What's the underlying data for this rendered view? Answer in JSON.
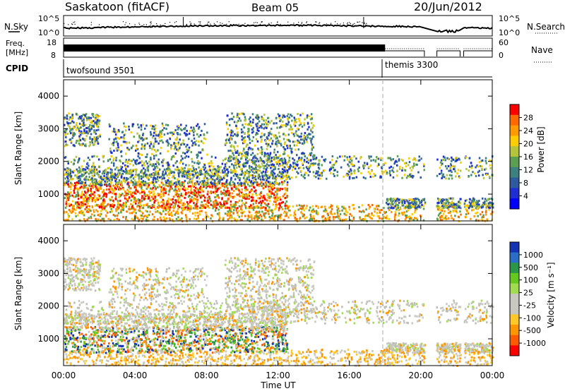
{
  "header": {
    "title": "Saskatoon (fitACF)",
    "beam": "Beam 05",
    "date": "20/Jun/2012"
  },
  "panel_labels": {
    "nsky": "N.Sky",
    "freq_line1": "Freq.",
    "freq_line2": "[MHz]",
    "cpid": "CPID",
    "nsearch": "N.Search",
    "nave": "Nave"
  },
  "cpid_modes": [
    {
      "name": "twofsound 3501",
      "start_hour": 0
    },
    {
      "name": "themis 3300",
      "start_hour": 18
    }
  ],
  "chart_data": [
    {
      "type": "line",
      "name": "noise",
      "y_ticks_left": [
        "10^5",
        "10^0"
      ],
      "y_ticks_right": [
        "10^5",
        "10^0"
      ]
    },
    {
      "type": "line",
      "name": "frequency",
      "y_ticks_left": [
        "18",
        "8"
      ],
      "y_ticks_right": [
        "60",
        "0"
      ]
    },
    {
      "type": "heatmap",
      "name": "power",
      "ylabel": "Slant Range [km]",
      "y_ticks": [
        "4000",
        "3000",
        "2000",
        "1000"
      ],
      "ylim": [
        180,
        4500
      ],
      "xlim": [
        0,
        24
      ],
      "colorbar_label": "Power [dB]",
      "colorbar_ticks": [
        "28",
        "24",
        "20",
        "16",
        "12",
        "8",
        "4"
      ],
      "colorbar_colors": [
        "#ff0000",
        "#ff6a00",
        "#ff9a00",
        "#ffcc00",
        "#b4c43c",
        "#5aa050",
        "#3c8080",
        "#2e5aa0",
        "#1e2ed2",
        "#0000ff"
      ]
    },
    {
      "type": "heatmap",
      "name": "velocity",
      "ylabel": "Slant Range [km]",
      "y_ticks": [
        "4000",
        "3000",
        "2000",
        "1000"
      ],
      "ylim": [
        180,
        4500
      ],
      "xlim": [
        0,
        24
      ],
      "xlabel": "Time UT",
      "x_ticks": [
        "00:00",
        "04:00",
        "08:00",
        "12:00",
        "16:00",
        "20:00",
        "00:00"
      ],
      "colorbar_label": "Velocity [m s⁻¹]",
      "colorbar_ticks": [
        "1000",
        "500",
        "100",
        "25",
        "-25",
        "-100",
        "-500",
        "-1000"
      ],
      "colorbar_colors": [
        "#1432b4",
        "#2a6ec8",
        "#2c9648",
        "#64c81e",
        "#a0dc50",
        "#c8c8c0",
        "#c8c8c0",
        "#ffc828",
        "#ff9600",
        "#ff5a00",
        "#ff0000"
      ]
    }
  ],
  "x_axis": {
    "label": "Time UT",
    "ticks": [
      "00:00",
      "04:00",
      "08:00",
      "12:00",
      "16:00",
      "20:00",
      "00:00"
    ]
  }
}
